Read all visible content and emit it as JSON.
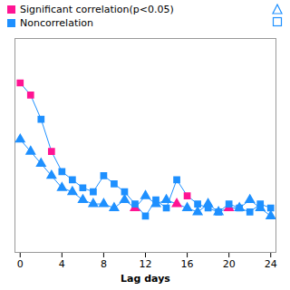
{
  "chart_data": {
    "type": "line",
    "xlabel": "Lag days",
    "x": [
      0,
      1,
      2,
      3,
      4,
      5,
      6,
      7,
      8,
      9,
      10,
      11,
      12,
      13,
      14,
      15,
      16,
      17,
      18,
      19,
      20,
      21,
      22,
      23,
      24
    ],
    "series": [
      {
        "marker": "triangle",
        "color": "#1E90FF",
        "colors": [
          "#1E90FF",
          "#1E90FF",
          "#1E90FF",
          "#1E90FF",
          "#1E90FF",
          "#1E90FF",
          "#1E90FF",
          "#1E90FF",
          "#1E90FF",
          "#1E90FF",
          "#1E90FF",
          "#FF1493",
          "#1E90FF",
          "#1E90FF",
          "#1E90FF",
          "#FF1493",
          "#1E90FF",
          "#1E90FF",
          "#1E90FF",
          "#1E90FF",
          "#FF1493",
          "#1E90FF",
          "#1E90FF",
          "#1E90FF",
          "#1E90FF"
        ],
        "values": [
          0.63,
          0.6,
          0.57,
          0.54,
          0.51,
          0.5,
          0.48,
          0.47,
          0.47,
          0.46,
          0.48,
          0.46,
          0.49,
          0.47,
          0.48,
          0.47,
          0.46,
          0.45,
          0.47,
          0.45,
          0.46,
          0.46,
          0.48,
          0.46,
          0.44
        ]
      },
      {
        "marker": "square",
        "color": "#1E90FF",
        "colors": [
          "#FF1493",
          "#FF1493",
          "#1E90FF",
          "#FF1493",
          "#1E90FF",
          "#1E90FF",
          "#1E90FF",
          "#1E90FF",
          "#1E90FF",
          "#1E90FF",
          "#1E90FF",
          "#1E90FF",
          "#1E90FF",
          "#1E90FF",
          "#1E90FF",
          "#1E90FF",
          "#FF1493",
          "#1E90FF",
          "#1E90FF",
          "#1E90FF",
          "#1E90FF",
          "#1E90FF",
          "#1E90FF",
          "#1E90FF",
          "#1E90FF"
        ],
        "values": [
          0.77,
          0.74,
          0.68,
          0.6,
          0.55,
          0.53,
          0.51,
          0.5,
          0.54,
          0.52,
          0.5,
          0.47,
          0.44,
          0.48,
          0.46,
          0.53,
          0.49,
          0.47,
          0.46,
          0.45,
          0.47,
          0.46,
          0.45,
          0.47,
          0.46
        ]
      }
    ],
    "xlim": [
      -0.5,
      24.5
    ],
    "ylim": [
      0.35,
      0.88
    ],
    "xticks": [
      0,
      4,
      8,
      12,
      16,
      20,
      24
    ],
    "tick_labels": "x",
    "legend": "upper left",
    "legend_entries": [
      {
        "label": "Significant correlation(p<0.05)",
        "color": "#FF1493"
      },
      {
        "label": "Noncorrelation",
        "color": "#1E90FF"
      }
    ]
  }
}
